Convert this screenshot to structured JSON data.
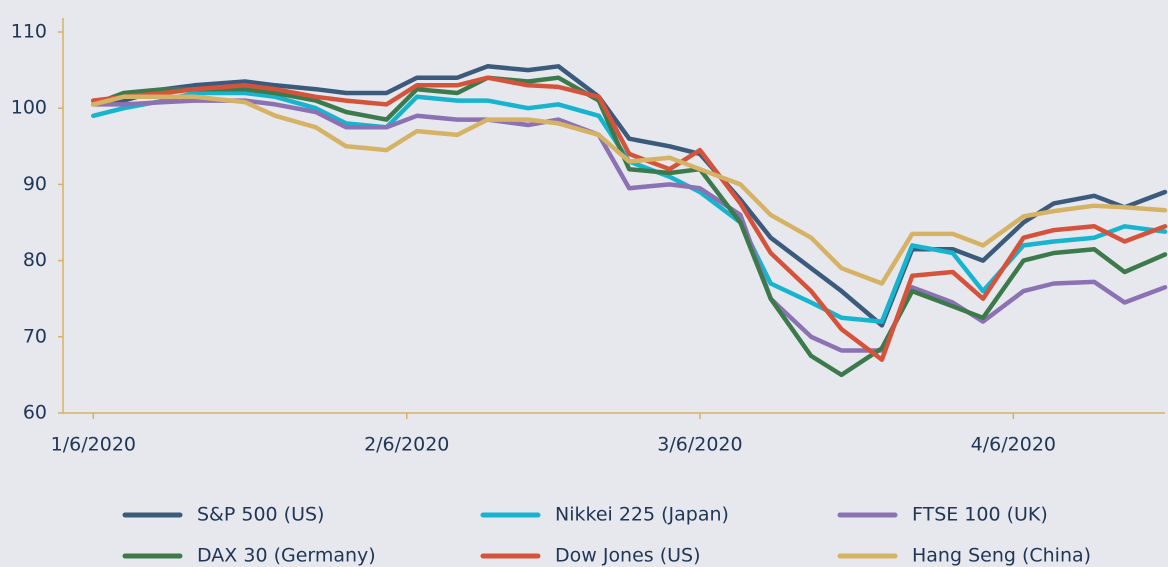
{
  "chart_data": {
    "type": "line",
    "x": [
      "2020-01-06",
      "2020-01-09",
      "2020-01-13",
      "2020-01-16",
      "2020-01-21",
      "2020-01-24",
      "2020-01-28",
      "2020-01-31",
      "2020-02-04",
      "2020-02-07",
      "2020-02-11",
      "2020-02-14",
      "2020-02-18",
      "2020-02-21",
      "2020-02-25",
      "2020-02-28",
      "2020-03-03",
      "2020-03-06",
      "2020-03-10",
      "2020-03-13",
      "2020-03-17",
      "2020-03-20",
      "2020-03-24",
      "2020-03-27",
      "2020-03-31",
      "2020-04-03",
      "2020-04-07",
      "2020-04-10",
      "2020-04-14",
      "2020-04-17",
      "2020-04-21"
    ],
    "xlim": [
      "2020-01-03",
      "2020-04-21"
    ],
    "xticks": [
      {
        "value": "2020-01-06",
        "label": "1/6/2020"
      },
      {
        "value": "2020-02-06",
        "label": "2/6/2020"
      },
      {
        "value": "2020-03-06",
        "label": "3/6/2020"
      },
      {
        "value": "2020-04-06",
        "label": "4/6/2020"
      }
    ],
    "ylim": [
      60,
      110
    ],
    "yticks": [
      60,
      70,
      80,
      90,
      100,
      110
    ],
    "grid": false,
    "legend": "bottom",
    "series": [
      {
        "name": "S&P 500 (US)",
        "color": "#3b5a7c",
        "values": [
          101,
          101,
          102.5,
          103,
          103.5,
          103,
          102.5,
          102,
          102,
          104,
          104,
          105.5,
          105,
          105.5,
          101.5,
          96,
          95,
          94,
          88,
          83,
          79,
          76,
          71.5,
          81.5,
          81.5,
          80,
          85,
          87.5,
          88.5,
          87,
          89
        ]
      },
      {
        "name": "Nikkei 225 (Japan)",
        "color": "#17b4cf",
        "values": [
          99,
          100,
          101,
          102,
          102,
          101.5,
          100,
          98,
          97.5,
          101.5,
          101,
          101,
          100,
          100.5,
          99,
          93,
          91,
          89,
          85,
          77,
          74.5,
          72.5,
          72,
          82,
          81,
          76,
          82,
          82.5,
          83,
          84.5,
          83.8
        ]
      },
      {
        "name": "FTSE 100 (UK)",
        "color": "#8c72b2",
        "values": [
          100.5,
          100.5,
          100.8,
          101,
          101,
          100.5,
          99.5,
          97.5,
          97.5,
          99,
          98.5,
          98.5,
          97.8,
          98.5,
          96.5,
          89.5,
          90,
          89.5,
          86,
          75,
          70,
          68.2,
          68.2,
          76.5,
          74.5,
          72,
          76,
          77,
          77.2,
          74.5,
          76.5
        ]
      },
      {
        "name": "DAX 30 (Germany)",
        "color": "#3c7a4c",
        "values": [
          100.5,
          102,
          102.5,
          102.5,
          102.5,
          102,
          101,
          99.5,
          98.5,
          102.5,
          102,
          104,
          103.5,
          104,
          101,
          92,
          91.5,
          92,
          85,
          75,
          67.5,
          65,
          68.5,
          76,
          74,
          72.5,
          80,
          81,
          81.5,
          78.5,
          80.8
        ]
      },
      {
        "name": "Dow Jones (US)",
        "color": "#d6533b",
        "values": [
          101,
          101.5,
          102,
          102.5,
          103,
          102.5,
          101.5,
          101,
          100.5,
          103,
          103,
          104,
          103,
          102.8,
          101.5,
          94,
          92,
          94.5,
          87.5,
          81,
          76,
          71,
          67,
          78,
          78.5,
          75,
          83,
          84,
          84.5,
          82.5,
          84.5
        ]
      },
      {
        "name": "Hang Seng (China)",
        "color": "#d5b264",
        "values": [
          100.5,
          101.5,
          101.5,
          101.5,
          100.8,
          99,
          97.5,
          95,
          94.5,
          97,
          96.5,
          98.5,
          98.5,
          98,
          96.5,
          93,
          93.5,
          92,
          90,
          86,
          83,
          79,
          77,
          83.5,
          83.5,
          82,
          85.8,
          86.5,
          87.2,
          87,
          86.6
        ]
      }
    ]
  }
}
